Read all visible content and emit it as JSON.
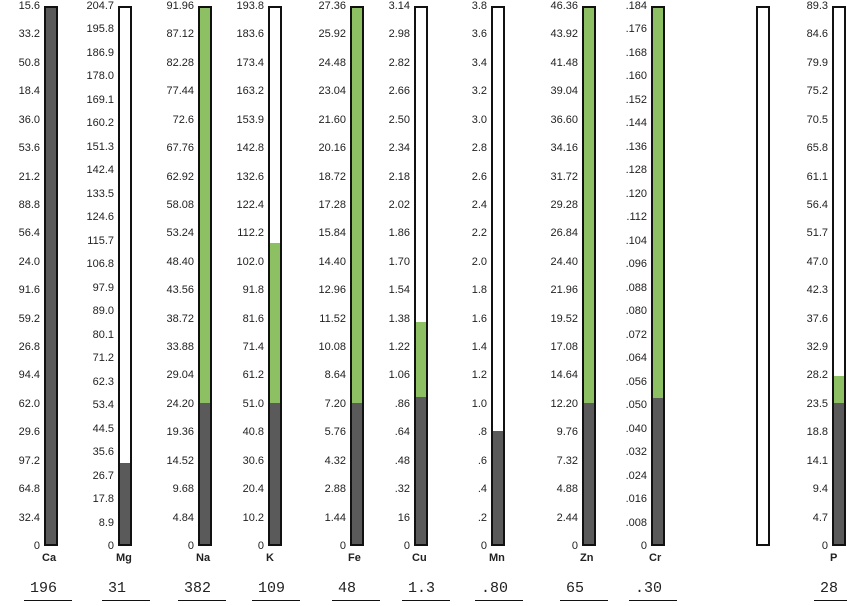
{
  "colors": {
    "green": "#8cc063",
    "dark": "#5a5a5a",
    "frame": "#111111"
  },
  "chart_data": {
    "type": "bar",
    "title": "",
    "xlabel": "",
    "ylabel": "",
    "grid": false,
    "categories": [
      "Ca",
      "Mg",
      "Na",
      "K",
      "Fe",
      "Cu",
      "Mn",
      "Zn",
      "Cr",
      "",
      "P"
    ],
    "values": [
      196,
      31,
      382,
      109,
      48,
      1.3,
      0.8,
      65,
      0.3,
      null,
      28
    ],
    "result_labels": [
      "196",
      "31",
      "382",
      "109",
      "48",
      "1.3",
      ".80",
      "65",
      ".30",
      "",
      "28"
    ],
    "normal_threshold": [
      62.0,
      44.5,
      24.2,
      51.0,
      7.2,
      0.86,
      1.0,
      12.2,
      0.05,
      null,
      23.5
    ],
    "scales": [
      [
        "15.6",
        "33.2",
        "50.8",
        "18.4",
        "36.0",
        "53.6",
        "21.2",
        "88.8",
        "56.4",
        "24.0",
        "91.6",
        "59.2",
        "26.8",
        "94.4",
        "62.0",
        "29.6",
        "97.2",
        "64.8",
        "32.4",
        "0"
      ],
      [
        "204.7",
        "195.8",
        "186.9",
        "178.0",
        "169.1",
        "160.2",
        "151.3",
        "142.4",
        "133.5",
        "124.6",
        "115.7",
        "106.8",
        "97.9",
        "89.0",
        "80.1",
        "71.2",
        "62.3",
        "53.4",
        "44.5",
        "35.6",
        "26.7",
        "17.8",
        "8.9",
        "0"
      ],
      [
        "91.96",
        "87.12",
        "82.28",
        "77.44",
        "72.6",
        "67.76",
        "62.92",
        "58.08",
        "53.24",
        "48.40",
        "43.56",
        "38.72",
        "33.88",
        "29.04",
        "24.20",
        "19.36",
        "14.52",
        "9.68",
        "4.84",
        "0"
      ],
      [
        "193.8",
        "183.6",
        "173.4",
        "163.2",
        "153.9",
        "142.8",
        "132.6",
        "122.4",
        "112.2",
        "102.0",
        "91.8",
        "81.6",
        "71.4",
        "61.2",
        "51.0",
        "40.8",
        "30.6",
        "20.4",
        "10.2",
        "0"
      ],
      [
        "27.36",
        "25.92",
        "24.48",
        "23.04",
        "21.60",
        "20.16",
        "18.72",
        "17.28",
        "15.84",
        "14.40",
        "12.96",
        "11.52",
        "10.08",
        "8.64",
        "7.20",
        "5.76",
        "4.32",
        "2.88",
        "1.44",
        "0"
      ],
      [
        "3.14",
        "2.98",
        "2.82",
        "2.66",
        "2.50",
        "2.34",
        "2.18",
        "2.02",
        "1.86",
        "1.70",
        "1.54",
        "1.38",
        "1.22",
        "1.06",
        ".86",
        ".64",
        ".48",
        ".32",
        "16",
        "0"
      ],
      [
        "3.8",
        "3.6",
        "3.4",
        "3.2",
        "3.0",
        "2.8",
        "2.6",
        "2.4",
        "2.2",
        "2.0",
        "1.8",
        "1.6",
        "1.4",
        "1.2",
        "1.0",
        ".8",
        ".6",
        ".4",
        ".2",
        "0"
      ],
      [
        "46.36",
        "43.92",
        "41.48",
        "39.04",
        "36.60",
        "34.16",
        "31.72",
        "29.28",
        "26.84",
        "24.40",
        "21.96",
        "19.52",
        "17.08",
        "14.64",
        "12.20",
        "9.76",
        "7.32",
        "4.88",
        "2.44",
        "0"
      ],
      [
        ".184",
        ".176",
        ".168",
        ".160",
        ".152",
        ".144",
        ".136",
        ".128",
        ".120",
        ".112",
        ".104",
        ".096",
        ".088",
        ".080",
        ".072",
        ".064",
        ".056",
        ".050",
        ".040",
        ".032",
        ".024",
        ".016",
        ".008",
        "0"
      ],
      [],
      [
        "89.3",
        "84.6",
        "79.9",
        "75.2",
        "70.5",
        "65.8",
        "61.1",
        "56.4",
        "51.7",
        "47.0",
        "42.3",
        "37.6",
        "32.9",
        "28.2",
        "23.5",
        "18.8",
        "14.1",
        "9.4",
        "4.7",
        "0"
      ]
    ]
  }
}
